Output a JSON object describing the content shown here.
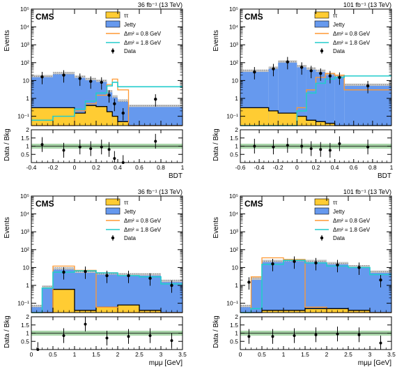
{
  "chart_data": [
    {
      "type": "bar",
      "panel": "upper-left",
      "experiment": "CMS",
      "luminosity": "36 fb⁻¹ (13 TeV)",
      "ylabel": "Events",
      "xlabel": "BDT",
      "ratio_ylabel": "Data / Bkg",
      "xlim": [
        -0.4,
        1.0
      ],
      "ylim": [
        0.03,
        100000
      ],
      "yscale": "log",
      "ratio_ylim": [
        0,
        2
      ],
      "xticks": [
        "-0.4",
        "-0.2",
        "0",
        "0.2",
        "0.4",
        "0.6",
        "0.8",
        "1"
      ],
      "yticks": [
        "10⁻¹",
        "1",
        "10",
        "10²",
        "10³",
        "10⁴",
        "10⁵"
      ],
      "ratio_yticks": [
        "0.5",
        "1",
        "1.5",
        "2"
      ],
      "legend_position": "top-right",
      "legend": {
        "tautau": "ττ",
        "jetty": "Jetty",
        "sig1": "Δm² = 0.8 GeV",
        "sig2": "Δm² = 1.8 GeV",
        "data": "Data"
      },
      "edges": [
        -0.4,
        -0.2,
        0.0,
        0.1,
        0.2,
        0.3,
        0.35,
        0.4,
        0.5,
        1.0
      ],
      "series": [
        {
          "name": "ττ",
          "color": "#ffcc33",
          "values": [
            0.3,
            0.3,
            0.15,
            0.4,
            0.35,
            0.18,
            0.1,
            0.05,
            0.03
          ]
        },
        {
          "name": "Jetty",
          "color": "#6699ee",
          "values": [
            15,
            22,
            14,
            10,
            8,
            2.0,
            1.0,
            0.6,
            0.3
          ]
        },
        {
          "name": "Δm² = 0.8 GeV",
          "color": "#ff9933",
          "values": [
            0.03,
            0.03,
            0.2,
            0.5,
            1.5,
            6,
            12,
            3.0,
            0.03
          ]
        },
        {
          "name": "Δm² = 1.8 GeV",
          "color": "#22cccc",
          "values": [
            0.06,
            0.1,
            0.25,
            0.7,
            2.0,
            5,
            8,
            4.5,
            4.5
          ]
        }
      ],
      "data_points": {
        "x": [
          -0.3,
          -0.1,
          0.05,
          0.15,
          0.25,
          0.32,
          0.37,
          0.45,
          0.75
        ],
        "y": [
          16,
          20,
          13,
          9,
          8,
          1.5,
          0.5,
          0.15,
          0.9
        ]
      },
      "ratio": {
        "x": [
          -0.3,
          -0.1,
          0.05,
          0.15,
          0.25,
          0.32,
          0.37,
          0.45,
          0.75
        ],
        "y": [
          1.1,
          0.75,
          0.95,
          0.85,
          0.95,
          0.8,
          0.25,
          0.0,
          1.3
        ]
      }
    },
    {
      "type": "bar",
      "panel": "upper-right",
      "experiment": "CMS",
      "luminosity": "101 fb⁻¹ (13 TeV)",
      "ylabel": "Events",
      "xlabel": "BDT",
      "ratio_ylabel": "Data / Bkg",
      "xlim": [
        -0.6,
        1.0
      ],
      "ylim": [
        0.03,
        100000
      ],
      "yscale": "log",
      "ratio_ylim": [
        0,
        2
      ],
      "xticks": [
        "-0.6",
        "-0.4",
        "-0.2",
        "0",
        "0.2",
        "0.4",
        "0.6",
        "0.8",
        "1"
      ],
      "yticks": [
        "10⁻¹",
        "1",
        "10",
        "10²",
        "10³",
        "10⁴",
        "10⁵"
      ],
      "ratio_yticks": [
        "0.5",
        "1",
        "1.5",
        "2"
      ],
      "legend_position": "top-right",
      "legend": {
        "tautau": "ττ",
        "jetty": "Jetty",
        "sig1": "Δm² = 0.8 GeV",
        "sig2": "Δm² = 1.8 GeV",
        "data": "Data"
      },
      "edges": [
        -0.6,
        -0.3,
        -0.2,
        0.0,
        0.1,
        0.2,
        0.3,
        0.4,
        0.5,
        1.0
      ],
      "series": [
        {
          "name": "ττ",
          "color": "#ffcc33",
          "values": [
            0.3,
            0.2,
            0.15,
            0.1,
            0.06,
            0.05,
            0.04,
            0.03,
            0.03
          ]
        },
        {
          "name": "Jetty",
          "color": "#6699ee",
          "values": [
            30,
            45,
            100,
            55,
            40,
            30,
            20,
            15,
            5
          ]
        },
        {
          "name": "Δm² = 0.8 GeV",
          "color": "#ff9933",
          "values": [
            0.03,
            0.03,
            0.03,
            0.3,
            3,
            15,
            25,
            20,
            3
          ]
        },
        {
          "name": "Δm² = 1.8 GeV",
          "color": "#22cccc",
          "values": [
            0.03,
            0.03,
            0.03,
            0.2,
            2,
            7,
            12,
            15,
            18
          ]
        }
      ],
      "data_points": {
        "x": [
          -0.45,
          -0.25,
          -0.1,
          0.05,
          0.15,
          0.25,
          0.35,
          0.45,
          0.75
        ],
        "y": [
          30,
          45,
          110,
          55,
          35,
          25,
          18,
          15,
          5
        ]
      },
      "ratio": {
        "x": [
          -0.45,
          -0.25,
          -0.1,
          0.05,
          0.15,
          0.25,
          0.35,
          0.45,
          0.75
        ],
        "y": [
          1.0,
          0.95,
          1.05,
          1.0,
          0.85,
          0.8,
          0.75,
          1.15,
          0.95
        ]
      }
    },
    {
      "type": "bar",
      "panel": "lower-left",
      "experiment": "CMS",
      "luminosity": "36 fb⁻¹ (13 TeV)",
      "ylabel": "Events",
      "xlabel": "mμμ [GeV]",
      "ratio_ylabel": "Data / Bkg",
      "xlim": [
        0,
        3.5
      ],
      "ylim": [
        0.03,
        100000
      ],
      "yscale": "log",
      "ratio_ylim": [
        0,
        2
      ],
      "xticks": [
        "0",
        "0.5",
        "1",
        "1.5",
        "2",
        "2.5",
        "3",
        "3.5"
      ],
      "yticks": [
        "10⁻¹",
        "1",
        "10",
        "10²",
        "10³",
        "10⁴",
        "10⁵"
      ],
      "ratio_yticks": [
        "0.5",
        "1",
        "1.5",
        "2"
      ],
      "legend_position": "top-right",
      "legend": {
        "tautau": "ττ",
        "jetty": "Jetty",
        "sig1": "Δm² = 0.8 GeV",
        "sig2": "Δm² = 1.8 GeV",
        "data": "Data"
      },
      "edges": [
        0,
        0.25,
        0.5,
        1.0,
        1.5,
        2.0,
        2.5,
        3.0,
        3.5
      ],
      "series": [
        {
          "name": "ττ",
          "color": "#ffcc33",
          "values": [
            0.03,
            0.03,
            0.6,
            0.04,
            0.06,
            0.08,
            0.04,
            0.03
          ]
        },
        {
          "name": "Jetty",
          "color": "#6699ee",
          "values": [
            0.03,
            0.7,
            7,
            5,
            4,
            3.5,
            3.5,
            1.5
          ]
        },
        {
          "name": "Δm² = 0.8 GeV",
          "color": "#ff9933",
          "values": [
            0.03,
            0.03,
            12,
            7,
            0.06,
            0.03,
            0.03,
            0.03
          ]
        },
        {
          "name": "Δm² = 1.8 GeV",
          "color": "#22cccc",
          "values": [
            0.03,
            0.7,
            5.5,
            6.5,
            5,
            3.5,
            3.0,
            1.2
          ]
        }
      ],
      "data_points": {
        "x": [
          0.75,
          1.25,
          1.75,
          2.25,
          2.75,
          3.25
        ],
        "y": [
          5.5,
          6,
          3.5,
          3.5,
          2.5,
          1.0
        ]
      },
      "ratio": {
        "x": [
          0.15,
          0.75,
          1.25,
          1.75,
          2.25,
          2.75,
          3.25
        ],
        "y": [
          0.0,
          0.85,
          1.55,
          0.7,
          0.8,
          0.85,
          0.55
        ]
      }
    },
    {
      "type": "bar",
      "panel": "lower-right",
      "experiment": "CMS",
      "luminosity": "101 fb⁻¹ (13 TeV)",
      "ylabel": "Events",
      "xlabel": "mμμ [GeV]",
      "ratio_ylabel": "Data / Bkg",
      "xlim": [
        0,
        3.5
      ],
      "ylim": [
        0.03,
        100000
      ],
      "yscale": "log",
      "ratio_ylim": [
        0,
        2
      ],
      "xticks": [
        "0",
        "0.5",
        "1",
        "1.5",
        "2",
        "2.5",
        "3",
        "3.5"
      ],
      "yticks": [
        "10⁻¹",
        "1",
        "10",
        "10²",
        "10³",
        "10⁴",
        "10⁵"
      ],
      "ratio_yticks": [
        "0.5",
        "1",
        "1.5",
        "2"
      ],
      "legend_position": "top-right",
      "legend": {
        "tautau": "ττ",
        "jetty": "Jetty",
        "sig1": "Δm² = 0.8 GeV",
        "sig2": "Δm² = 1.8 GeV",
        "data": "Data"
      },
      "edges": [
        0,
        0.25,
        0.5,
        1.0,
        1.5,
        2.0,
        2.5,
        3.0,
        3.5
      ],
      "series": [
        {
          "name": "ττ",
          "color": "#ffcc33",
          "values": [
            0.03,
            0.03,
            0.04,
            0.04,
            0.05,
            0.05,
            0.04,
            0.03
          ]
        },
        {
          "name": "Jetty",
          "color": "#6699ee",
          "values": [
            0.03,
            2,
            20,
            22,
            20,
            15,
            10,
            5
          ]
        },
        {
          "name": "Δm² = 0.8 GeV",
          "color": "#ff9933",
          "values": [
            0.03,
            3,
            35,
            28,
            0.06,
            0.03,
            0.03,
            0.03
          ]
        },
        {
          "name": "Δm² = 1.8 GeV",
          "color": "#22cccc",
          "values": [
            0.03,
            0.05,
            15,
            25,
            18,
            12,
            10,
            4
          ]
        }
      ],
      "data_points": {
        "x": [
          0.2,
          0.75,
          1.25,
          1.75,
          2.25,
          2.75,
          3.25
        ],
        "y": [
          1.5,
          16,
          22,
          18,
          14,
          10,
          2.0
        ]
      },
      "ratio": {
        "x": [
          0.2,
          0.75,
          1.25,
          1.75,
          2.25,
          2.75,
          3.25
        ],
        "y": [
          0.8,
          0.8,
          0.85,
          0.9,
          0.95,
          0.9,
          0.4
        ]
      }
    }
  ]
}
